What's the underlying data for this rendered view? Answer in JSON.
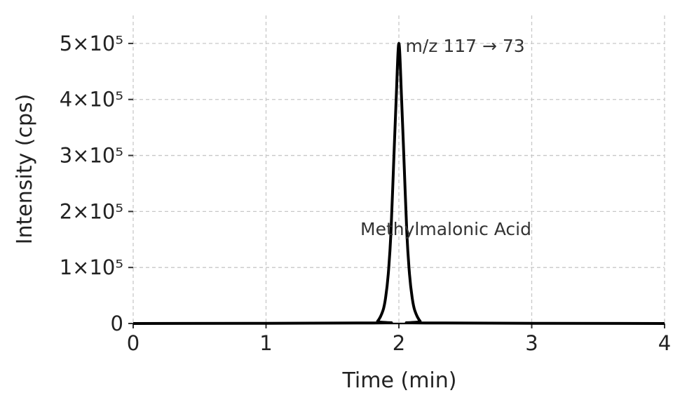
{
  "chart_data": {
    "type": "line",
    "xlabel": "Time (min)",
    "ylabel": "Intensity (cps)",
    "xlim": [
      0,
      4
    ],
    "ylim": [
      0,
      550000
    ],
    "x_ticks": [
      0,
      1,
      2,
      3,
      4
    ],
    "x_tick_labels": [
      "0",
      "1",
      "2",
      "3",
      "4"
    ],
    "y_ticks": [
      0,
      100000,
      200000,
      300000,
      400000,
      500000
    ],
    "y_tick_labels": [
      "0",
      "1×10⁵",
      "2×10⁵",
      "3×10⁵",
      "4×10⁵",
      "5×10⁵"
    ],
    "grid": true,
    "series": [
      {
        "color": "#000000",
        "x": [
          0,
          1.8,
          1.84,
          1.88,
          1.9,
          1.92,
          1.94,
          1.96,
          1.98,
          2.0,
          2.02,
          2.04,
          2.06,
          2.08,
          2.1,
          2.12,
          2.16,
          2.2,
          4
        ],
        "y": [
          0,
          1000,
          4200,
          23000,
          46000,
          88000,
          161000,
          282000,
          403000,
          500000,
          403000,
          282000,
          161000,
          88000,
          46000,
          23000,
          4200,
          1000,
          0
        ]
      }
    ],
    "annotations": [
      {
        "text": "m/z 117 → 73",
        "x": 2.05,
        "y": 485000
      },
      {
        "text": "Methylmalonic Acid",
        "x": 1.71,
        "y": 158000
      }
    ]
  }
}
